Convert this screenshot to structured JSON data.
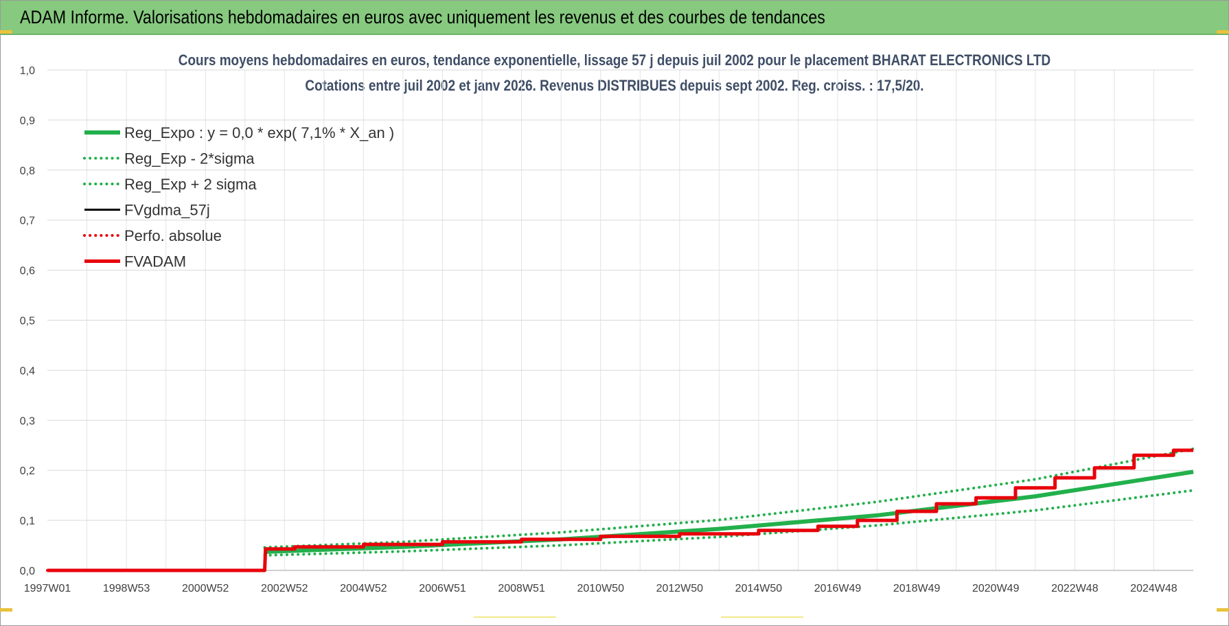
{
  "banner": {
    "title": "ADAM Informe. Valorisations hebdomadaires en euros avec uniquement les revenus et des courbes de tendances"
  },
  "colors": {
    "banner_bg": "#86c97f",
    "reg_green": "#22b04c",
    "fvadam_red": "#e8000b",
    "fvgdma_black": "#000000",
    "title_blue": "#3f4e66"
  },
  "chart_data": {
    "type": "line",
    "title": "Cours moyens hebdomadaires en euros, tendance exponentielle, lissage 57 j depuis juil 2002 pour le placement BHARAT ELECTRONICS LTD",
    "subtitle": "Cotations entre juil 2002 et janv 2026. Revenus DISTRIBUES depuis sept 2002. Reg. croiss. : 17,5/20.",
    "xlabel": "",
    "ylabel": "",
    "ylim": [
      0,
      1.0
    ],
    "xlim": [
      1997.0,
      2026.0
    ],
    "y_ticks": [
      "0,0",
      "0,1",
      "0,2",
      "0,3",
      "0,4",
      "0,5",
      "0,6",
      "0,7",
      "0,8",
      "0,9",
      "1,0"
    ],
    "y_tick_values": [
      0,
      0.1,
      0.2,
      0.3,
      0.4,
      0.5,
      0.6,
      0.7,
      0.8,
      0.9,
      1.0
    ],
    "x_tick_labels": [
      "1997W01",
      "1998W53",
      "2000W52",
      "2002W52",
      "2004W52",
      "2006W51",
      "2008W51",
      "2010W50",
      "2012W50",
      "2014W50",
      "2016W49",
      "2018W49",
      "2020W49",
      "2022W48",
      "2024W48"
    ],
    "x_tick_values": [
      1997.0,
      1999.0,
      2001.0,
      2003.0,
      2005.0,
      2007.0,
      2009.0,
      2011.0,
      2013.0,
      2015.0,
      2017.0,
      2019.0,
      2021.0,
      2023.0,
      2025.0
    ],
    "legend_position": "top-left",
    "series": [
      {
        "name": "Reg_Expo : y = 0,0 * exp( 7,1% *  X_an )",
        "style": "solid-thick",
        "color": "#22b04c",
        "x": [
          2002.5,
          2006,
          2010,
          2014,
          2018,
          2022,
          2026
        ],
        "y": [
          0.037,
          0.047,
          0.062,
          0.083,
          0.11,
          0.148,
          0.197
        ]
      },
      {
        "name": "Reg_Exp - 2*sigma",
        "style": "dotted",
        "color": "#22b04c",
        "x": [
          2002.5,
          2006,
          2010,
          2014,
          2018,
          2022,
          2026
        ],
        "y": [
          0.03,
          0.038,
          0.05,
          0.067,
          0.09,
          0.12,
          0.16
        ]
      },
      {
        "name": "Reg_Exp + 2 sigma",
        "style": "dotted",
        "color": "#22b04c",
        "x": [
          2002.5,
          2006,
          2010,
          2014,
          2018,
          2022,
          2026
        ],
        "y": [
          0.046,
          0.057,
          0.076,
          0.101,
          0.137,
          0.182,
          0.243
        ]
      },
      {
        "name": "FVgdma_57j",
        "style": "solid",
        "color": "#000000",
        "x": [
          1997,
          2002.5,
          2002.52,
          2004,
          2006,
          2008,
          2010,
          2012,
          2014,
          2016,
          2017,
          2018,
          2019,
          2020,
          2021,
          2022,
          2023,
          2024,
          2025,
          2026
        ],
        "y": [
          0,
          0,
          0.043,
          0.047,
          0.052,
          0.057,
          0.062,
          0.068,
          0.073,
          0.08,
          0.088,
          0.1,
          0.118,
          0.133,
          0.145,
          0.165,
          0.185,
          0.205,
          0.23,
          0.24
        ]
      },
      {
        "name": "Perfo. absolue",
        "style": "dotted",
        "color": "#e8000b",
        "x": [
          1997,
          2002.5,
          2002.52,
          2004,
          2006,
          2008,
          2010,
          2012,
          2014,
          2016,
          2017,
          2018,
          2019,
          2020,
          2021,
          2022,
          2023,
          2024,
          2025,
          2026
        ],
        "y": [
          0,
          0,
          0.043,
          0.047,
          0.052,
          0.057,
          0.062,
          0.068,
          0.073,
          0.08,
          0.088,
          0.1,
          0.118,
          0.133,
          0.145,
          0.165,
          0.185,
          0.205,
          0.23,
          0.24
        ]
      },
      {
        "name": "FVADAM",
        "style": "solid-thick",
        "color": "#e8000b",
        "x": [
          1997,
          2002.5,
          2002.52,
          2004,
          2006,
          2008,
          2010,
          2012,
          2014,
          2016,
          2017,
          2018,
          2019,
          2020,
          2021,
          2022,
          2023,
          2024,
          2025,
          2026
        ],
        "y": [
          0,
          0,
          0.043,
          0.047,
          0.052,
          0.057,
          0.062,
          0.068,
          0.073,
          0.08,
          0.088,
          0.1,
          0.118,
          0.133,
          0.145,
          0.165,
          0.185,
          0.205,
          0.23,
          0.24
        ]
      }
    ]
  }
}
